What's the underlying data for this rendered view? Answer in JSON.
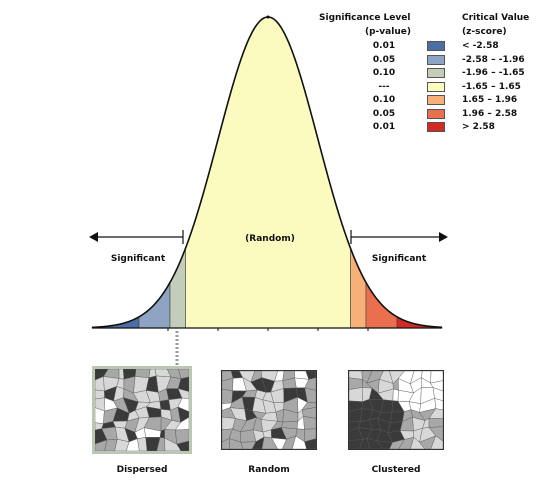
{
  "legend": {
    "sig_header_line1": "Significance Level",
    "sig_header_line2": "(p-value)",
    "crit_header_line1": "Critical Value",
    "crit_header_line2": "(z-score)",
    "rows": [
      {
        "p": "0.01",
        "z": "< -2.58",
        "color": "#4a6fa6"
      },
      {
        "p": "0.05",
        "z": "-2.58 – -1.96",
        "color": "#8fa4c2"
      },
      {
        "p": "0.10",
        "z": "-1.96 – -1.65",
        "color": "#c4cdb9"
      },
      {
        "p": "---",
        "z": "-1.65 – 1.65",
        "color": "#fbfbbf"
      },
      {
        "p": "0.10",
        "z": "1.65 – 1.96",
        "color": "#f6b078"
      },
      {
        "p": "0.05",
        "z": "1.96 – 2.58",
        "color": "#ea6f4f"
      },
      {
        "p": "0.01",
        "z": "> 2.58",
        "color": "#d32a25"
      }
    ]
  },
  "curve": {
    "center_label": "(Random)",
    "left_label": "Significant",
    "right_label": "Significant"
  },
  "maps": {
    "dispersed": "Dispersed",
    "random": "Random",
    "clustered": "Clustered"
  },
  "colors": {
    "outline": "#111111",
    "map_dark": "#3a3a3a",
    "map_mid": "#a8a8a8",
    "map_light": "#d8d8d8",
    "map_white": "#ffffff",
    "highlight_frame": "#b9c7b3"
  }
}
